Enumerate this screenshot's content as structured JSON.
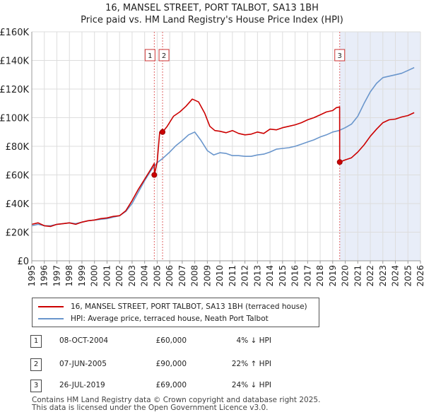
{
  "title_line1": "16, MANSEL STREET, PORT TALBOT, SA13 1BH",
  "title_line2": "Price paid vs. HM Land Registry's House Price Index (HPI)",
  "chart_data": {
    "type": "line",
    "xlim": [
      1995,
      2026
    ],
    "ylim": [
      0,
      160000
    ],
    "x_ticks": [
      1995,
      1996,
      1997,
      1998,
      1999,
      2000,
      2001,
      2002,
      2003,
      2004,
      2005,
      2006,
      2007,
      2008,
      2009,
      2010,
      2011,
      2012,
      2013,
      2014,
      2015,
      2016,
      2017,
      2018,
      2019,
      2020,
      2021,
      2022,
      2023,
      2024,
      2025,
      2026
    ],
    "y_ticks": [
      {
        "value": 0,
        "label": "£0"
      },
      {
        "value": 20000,
        "label": "£20K"
      },
      {
        "value": 40000,
        "label": "£40K"
      },
      {
        "value": 60000,
        "label": "£60K"
      },
      {
        "value": 80000,
        "label": "£80K"
      },
      {
        "value": 100000,
        "label": "£100K"
      },
      {
        "value": 120000,
        "label": "£120K"
      },
      {
        "value": 140000,
        "label": "£140K"
      },
      {
        "value": 160000,
        "label": "£160K"
      }
    ],
    "grid": true,
    "highlight_band": {
      "from": 2019.56,
      "to": 2026,
      "color": "#e8edf8"
    },
    "series": [
      {
        "name": "16, MANSEL STREET, PORT TALBOT, SA13 1BH (terraced house)",
        "color": "#cc0000",
        "x": [
          1995,
          1995.5,
          1996,
          1996.5,
          1997,
          1997.5,
          1998,
          1998.5,
          1999,
          1999.5,
          2000,
          2000.5,
          2001,
          2001.5,
          2002,
          2002.5,
          2003,
          2003.5,
          2004,
          2004.5,
          2004.77,
          2004.78,
          2005,
          2005.2,
          2005.43,
          2005.44,
          2005.8,
          2006.3,
          2006.8,
          2007.3,
          2007.8,
          2008.3,
          2008.8,
          2009.2,
          2009.6,
          2010,
          2010.5,
          2011,
          2011.5,
          2012,
          2012.5,
          2013,
          2013.5,
          2014,
          2014.5,
          2015,
          2015.5,
          2016,
          2016.5,
          2017,
          2017.5,
          2018,
          2018.5,
          2019,
          2019.3,
          2019.55,
          2019.56,
          2020,
          2020.5,
          2021,
          2021.5,
          2022,
          2022.5,
          2023,
          2023.5,
          2024,
          2024.5,
          2025,
          2025.5
        ],
        "values": [
          25500,
          26500,
          24500,
          24000,
          25500,
          26000,
          26500,
          25500,
          27000,
          28000,
          28500,
          29500,
          30000,
          31000,
          31500,
          35000,
          42000,
          50000,
          57000,
          64000,
          68000,
          60000,
          69000,
          90000,
          92000,
          90000,
          94000,
          101000,
          104000,
          108000,
          113000,
          111000,
          103000,
          94000,
          91000,
          90500,
          89500,
          91000,
          89000,
          88000,
          88500,
          90000,
          89000,
          92000,
          91500,
          93000,
          94000,
          95000,
          96500,
          98500,
          100000,
          102000,
          104000,
          105000,
          107000,
          107500,
          69000,
          70500,
          72000,
          76000,
          81000,
          87000,
          92000,
          96500,
          98500,
          99000,
          100500,
          101500,
          103500
        ]
      },
      {
        "name": "HPI: Average price, terraced house, Neath Port Talbot",
        "color": "#6a96cc",
        "x": [
          1995,
          1995.5,
          1996,
          1996.5,
          1997,
          1997.5,
          1998,
          1998.5,
          1999,
          1999.5,
          2000,
          2000.5,
          2001,
          2001.5,
          2002,
          2002.5,
          2003,
          2003.5,
          2004,
          2004.5,
          2005,
          2005.5,
          2006,
          2006.5,
          2007,
          2007.5,
          2008,
          2008.5,
          2009,
          2009.5,
          2010,
          2010.5,
          2011,
          2011.5,
          2012,
          2012.5,
          2013,
          2013.5,
          2014,
          2014.5,
          2015,
          2015.5,
          2016,
          2016.5,
          2017,
          2017.5,
          2018,
          2018.5,
          2019,
          2019.5,
          2020,
          2020.5,
          2021,
          2021.5,
          2022,
          2022.5,
          2023,
          2023.5,
          2024,
          2024.5,
          2025,
          2025.5
        ],
        "values": [
          24500,
          25500,
          24500,
          24500,
          25500,
          26000,
          26500,
          26000,
          27000,
          28000,
          28500,
          29000,
          29500,
          30500,
          31500,
          34500,
          40000,
          48000,
          56000,
          63000,
          68500,
          72000,
          76000,
          80500,
          84000,
          88000,
          90000,
          84000,
          77000,
          74000,
          75500,
          75000,
          73500,
          73500,
          73000,
          73000,
          74000,
          74500,
          76000,
          78000,
          78500,
          79000,
          80000,
          81500,
          83000,
          84500,
          86500,
          88000,
          90000,
          91000,
          93000,
          95500,
          101000,
          110000,
          118000,
          124000,
          128000,
          129000,
          130000,
          131000,
          133000,
          135000
        ]
      }
    ],
    "sales": [
      {
        "badge": "1",
        "x": 2004.77,
        "value": 60000
      },
      {
        "badge": "2",
        "x": 2005.43,
        "value": 90000
      },
      {
        "badge": "3",
        "x": 2019.56,
        "value": 69000
      }
    ]
  },
  "legend": [
    {
      "label": "16, MANSEL STREET, PORT TALBOT, SA13 1BH (terraced house)",
      "color": "#cc0000"
    },
    {
      "label": "HPI: Average price, terraced house, Neath Port Talbot",
      "color": "#6a96cc"
    }
  ],
  "sales_table": [
    {
      "badge": "1",
      "date": "08-OCT-2004",
      "price": "£60,000",
      "hpi": "4% ↓ HPI"
    },
    {
      "badge": "2",
      "date": "07-JUN-2005",
      "price": "£90,000",
      "hpi": "22% ↑ HPI"
    },
    {
      "badge": "3",
      "date": "26-JUL-2019",
      "price": "£69,000",
      "hpi": "24% ↓ HPI"
    }
  ],
  "footer_line1": "Contains HM Land Registry data © Crown copyright and database right 2025.",
  "footer_line2": "This data is licensed under the Open Government Licence v3.0."
}
